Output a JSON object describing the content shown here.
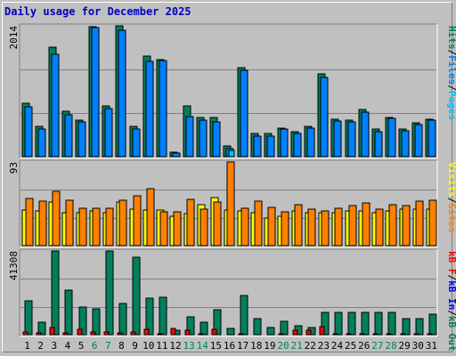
{
  "title": "Daily usage for December 2025",
  "colors": {
    "hits": "#00805c",
    "files": "#0080ff",
    "pages": "#00c0ff",
    "visits": "#ffff00",
    "sites": "#ff8000",
    "kbin": "#0000ff",
    "kbout": "#00805c",
    "kbf": "#ff0000",
    "grid": "#808080",
    "weekend_label": "#00805c"
  },
  "chart_data": [
    {
      "type": "bar",
      "panel": "top",
      "ymax_label": "2014",
      "ylim": [
        0,
        2014
      ],
      "legend": [
        {
          "text": "Hits",
          "color": "#00805c"
        },
        {
          "text": "/",
          "color": "#000000"
        },
        {
          "text": "Files",
          "color": "#0080ff"
        },
        {
          "text": "/",
          "color": "#000000"
        },
        {
          "text": "Pages",
          "color": "#00c0ff"
        }
      ],
      "categories": [
        "1",
        "2",
        "3",
        "4",
        "5",
        "6",
        "7",
        "8",
        "9",
        "10",
        "11",
        "12",
        "13",
        "14",
        "15",
        "16",
        "17",
        "18",
        "19",
        "20",
        "21",
        "22",
        "23",
        "24",
        "25",
        "26",
        "27",
        "28",
        "29",
        "30",
        "31"
      ],
      "series": [
        {
          "name": "Hits",
          "values": [
            820,
            470,
            1680,
            700,
            560,
            2000,
            780,
            2010,
            470,
            1550,
            1500,
            70,
            780,
            600,
            600,
            170,
            1370,
            360,
            350,
            440,
            380,
            460,
            1270,
            570,
            560,
            720,
            420,
            600,
            420,
            520,
            580
          ]
        },
        {
          "name": "Files",
          "values": [
            770,
            430,
            1580,
            640,
            540,
            1980,
            740,
            1950,
            430,
            1460,
            1480,
            50,
            620,
            560,
            540,
            130,
            1330,
            320,
            320,
            420,
            360,
            440,
            1220,
            550,
            540,
            680,
            380,
            590,
            400,
            500,
            560
          ]
        },
        {
          "name": "Pages",
          "values": [
            0,
            0,
            0,
            0,
            0,
            0,
            0,
            0,
            0,
            0,
            0,
            0,
            0,
            0,
            0,
            90,
            0,
            0,
            0,
            0,
            0,
            0,
            0,
            0,
            0,
            0,
            0,
            0,
            0,
            0,
            0
          ]
        }
      ]
    },
    {
      "type": "bar",
      "panel": "middle",
      "ymax_label": "93",
      "ylim": [
        0,
        93
      ],
      "legend": [
        {
          "text": "Visits",
          "color": "#ffff00"
        },
        {
          "text": "/",
          "color": "#000000"
        },
        {
          "text": "Sites",
          "color": "#ff8000"
        }
      ],
      "categories": [
        "1",
        "2",
        "3",
        "4",
        "5",
        "6",
        "7",
        "8",
        "9",
        "10",
        "11",
        "12",
        "13",
        "14",
        "15",
        "16",
        "17",
        "18",
        "19",
        "20",
        "21",
        "22",
        "23",
        "24",
        "25",
        "26",
        "27",
        "28",
        "29",
        "30",
        "31"
      ],
      "series": [
        {
          "name": "Visits",
          "values": [
            40,
            39,
            48,
            37,
            37,
            39,
            37,
            48,
            41,
            40,
            40,
            33,
            36,
            46,
            53,
            40,
            39,
            37,
            31,
            33,
            39,
            37,
            37,
            37,
            39,
            39,
            37,
            39,
            41,
            41,
            41
          ]
        },
        {
          "name": "Sites",
          "values": [
            52,
            49,
            60,
            50,
            42,
            42,
            42,
            50,
            55,
            63,
            38,
            38,
            51,
            41,
            48,
            93,
            42,
            49,
            43,
            38,
            46,
            41,
            39,
            42,
            45,
            47,
            41,
            46,
            45,
            49,
            50
          ]
        }
      ]
    },
    {
      "type": "bar",
      "panel": "bottom",
      "ymax_label": "41308",
      "ylim": [
        0,
        41308
      ],
      "legend": [
        {
          "text": "kB F",
          "color": "#ff0000"
        },
        {
          "text": "/",
          "color": "#000000"
        },
        {
          "text": "kB In",
          "color": "#0000ff"
        },
        {
          "text": "/",
          "color": "#000000"
        },
        {
          "text": "kB Out",
          "color": "#00805c"
        }
      ],
      "categories": [
        "1",
        "2",
        "3",
        "4",
        "5",
        "6",
        "7",
        "8",
        "9",
        "10",
        "11",
        "12",
        "13",
        "14",
        "15",
        "16",
        "17",
        "18",
        "19",
        "20",
        "21",
        "22",
        "23",
        "24",
        "25",
        "26",
        "27",
        "28",
        "29",
        "30",
        "31"
      ],
      "series": [
        {
          "name": "kB Out",
          "values": [
            16800,
            6300,
            41308,
            21800,
            13800,
            12800,
            41308,
            15300,
            38200,
            17800,
            18300,
            2300,
            8800,
            6300,
            12400,
            3200,
            19200,
            7800,
            3300,
            6800,
            4300,
            3300,
            10800,
            10800,
            10800,
            10800,
            10800,
            10800,
            7800,
            7800,
            10300
          ]
        },
        {
          "name": "kB F",
          "values": [
            1200,
            800,
            3500,
            1000,
            2500,
            1500,
            1500,
            1000,
            1500,
            2800,
            600,
            2900,
            2200,
            600,
            2500,
            0,
            600,
            0,
            0,
            600,
            2200,
            2200,
            3800,
            600,
            600,
            600,
            600,
            600,
            600,
            600,
            600
          ]
        },
        {
          "name": "kB In",
          "values": [
            0,
            0,
            0,
            0,
            0,
            0,
            0,
            0,
            0,
            0,
            0,
            0,
            0,
            0,
            0,
            0,
            0,
            0,
            0,
            0,
            0,
            0,
            0,
            0,
            0,
            0,
            0,
            0,
            0,
            0,
            0
          ]
        }
      ]
    }
  ],
  "x_labels": [
    {
      "text": "1",
      "weekend": false
    },
    {
      "text": "2",
      "weekend": false
    },
    {
      "text": "3",
      "weekend": false
    },
    {
      "text": "4",
      "weekend": false
    },
    {
      "text": "5",
      "weekend": false
    },
    {
      "text": "6",
      "weekend": true
    },
    {
      "text": "7",
      "weekend": true
    },
    {
      "text": "8",
      "weekend": false
    },
    {
      "text": "9",
      "weekend": false
    },
    {
      "text": "10",
      "weekend": false
    },
    {
      "text": "11",
      "weekend": false
    },
    {
      "text": "12",
      "weekend": false
    },
    {
      "text": "13",
      "weekend": true
    },
    {
      "text": "14",
      "weekend": true
    },
    {
      "text": "15",
      "weekend": false
    },
    {
      "text": "16",
      "weekend": false
    },
    {
      "text": "17",
      "weekend": false
    },
    {
      "text": "18",
      "weekend": false
    },
    {
      "text": "19",
      "weekend": false
    },
    {
      "text": "20",
      "weekend": true
    },
    {
      "text": "21",
      "weekend": true
    },
    {
      "text": "22",
      "weekend": false
    },
    {
      "text": "23",
      "weekend": false
    },
    {
      "text": "24",
      "weekend": false
    },
    {
      "text": "25",
      "weekend": false
    },
    {
      "text": "26",
      "weekend": false
    },
    {
      "text": "27",
      "weekend": true
    },
    {
      "text": "28",
      "weekend": true
    },
    {
      "text": "29",
      "weekend": false
    },
    {
      "text": "30",
      "weekend": false
    },
    {
      "text": "31",
      "weekend": false
    }
  ]
}
